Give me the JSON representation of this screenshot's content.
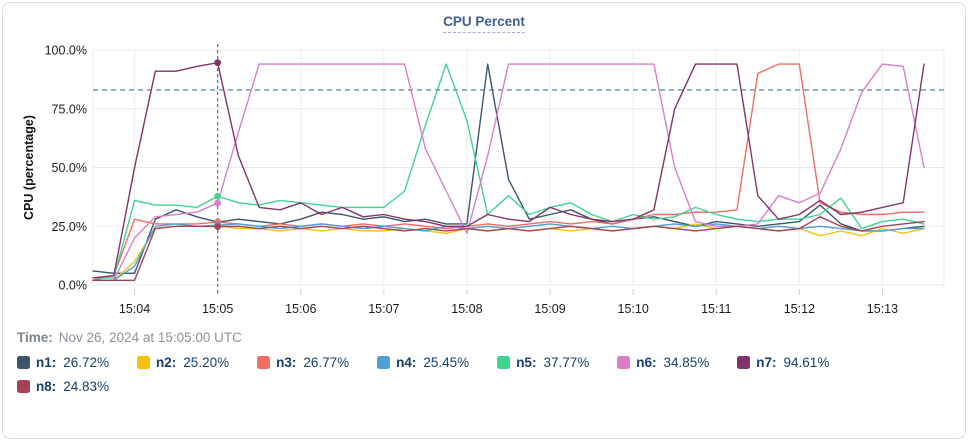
{
  "header": {
    "title": "CPU Percent"
  },
  "time_row": {
    "label": "Time:",
    "value": "Nov 26, 2024 at 15:05:00 UTC"
  },
  "colors": {
    "title_text": "#41608f",
    "legend_text": "#16406f",
    "muted_text": "#8d939a",
    "grid": "#e9e9e9",
    "card_border": "#dadfe5",
    "threshold": "#46788e",
    "crosshair": "#46788e"
  },
  "chart_data": {
    "type": "line",
    "title": "CPU Percent",
    "xlabel": "",
    "ylabel": "CPU (percentage)",
    "ylim": [
      0,
      100
    ],
    "grid": true,
    "legend_position": "bottom",
    "x_unit": "time (UTC)",
    "x_interval_seconds": 15,
    "x_start_time": "15:03:30",
    "x_ticks": [
      {
        "index": 2,
        "label": "15:04"
      },
      {
        "index": 6,
        "label": "15:05"
      },
      {
        "index": 10,
        "label": "15:06"
      },
      {
        "index": 14,
        "label": "15:07"
      },
      {
        "index": 18,
        "label": "15:08"
      },
      {
        "index": 22,
        "label": "15:09"
      },
      {
        "index": 26,
        "label": "15:10"
      },
      {
        "index": 30,
        "label": "15:11"
      },
      {
        "index": 34,
        "label": "15:12"
      },
      {
        "index": 38,
        "label": "15:13"
      }
    ],
    "y_ticks": [
      {
        "value": 0,
        "label": "0.0%"
      },
      {
        "value": 25,
        "label": "25.0%"
      },
      {
        "value": 50,
        "label": "50.0%"
      },
      {
        "value": 75,
        "label": "75.0%"
      },
      {
        "value": 100,
        "label": "100.0%"
      }
    ],
    "threshold_line": {
      "value": 83,
      "style": "dashed",
      "color": "#46788e"
    },
    "crosshair": {
      "index": 6,
      "time_label": "15:05",
      "color": "#46788e"
    },
    "series": [
      {
        "name": "n1",
        "color": "#3f556e",
        "legend_value": "26.72%",
        "values": [
          6,
          5,
          5,
          28,
          32,
          29,
          26.72,
          28,
          27,
          26,
          28,
          31,
          30,
          28,
          29,
          27,
          28,
          26,
          26,
          94,
          45,
          28,
          30,
          32,
          28,
          26,
          28,
          29,
          27,
          25,
          27,
          26,
          25,
          26,
          27,
          34,
          26,
          23,
          23,
          24,
          25
        ]
      },
      {
        "name": "n2",
        "color": "#f3c211",
        "legend_value": "25.20%",
        "values": [
          2,
          2,
          10,
          24,
          25,
          25,
          25.2,
          24,
          24,
          23,
          24,
          23,
          24,
          23,
          23,
          24,
          23,
          22,
          24,
          23,
          24,
          23,
          24,
          23,
          24,
          23,
          24,
          25,
          24,
          26,
          24,
          25,
          24,
          23,
          24,
          21,
          23,
          21,
          24,
          22,
          24
        ]
      },
      {
        "name": "n3",
        "color": "#ee6e62",
        "legend_value": "26.77%",
        "values": [
          2,
          4,
          28,
          26,
          26,
          26,
          26.77,
          26,
          25,
          26,
          25,
          26,
          25,
          26,
          25,
          26,
          25,
          24,
          25,
          26,
          25,
          26,
          27,
          26,
          27,
          26,
          28,
          30,
          30,
          31,
          31,
          32,
          90,
          94,
          94,
          35,
          31,
          30,
          30,
          31,
          31
        ]
      },
      {
        "name": "n4",
        "color": "#4d9fd6",
        "legend_value": "25.45%",
        "values": [
          2,
          2,
          8,
          25,
          26,
          25,
          25.45,
          26,
          25,
          24,
          25,
          26,
          25,
          24,
          25,
          24,
          23,
          25,
          24,
          25,
          24,
          25,
          26,
          25,
          24,
          25,
          24,
          25,
          26,
          25,
          26,
          25,
          24,
          25,
          24,
          25,
          24,
          23,
          23,
          24,
          24
        ]
      },
      {
        "name": "n5",
        "color": "#40d491",
        "legend_value": "37.77%",
        "values": [
          3,
          3,
          36,
          34,
          34,
          33,
          37.77,
          35,
          34,
          36,
          35,
          34,
          33,
          33,
          33,
          40,
          68,
          94,
          70,
          30,
          38,
          30,
          33,
          35,
          30,
          27,
          30,
          28,
          29,
          33,
          30,
          28,
          27,
          28,
          28,
          30,
          37,
          24,
          27,
          28,
          26
        ]
      },
      {
        "name": "n6",
        "color": "#d97fc9",
        "legend_value": "34.85%",
        "values": [
          2,
          2,
          20,
          29,
          30,
          31,
          34.85,
          65,
          94,
          94,
          94,
          94,
          94,
          94,
          94,
          94,
          58,
          40,
          22,
          55,
          94,
          94,
          94,
          94,
          94,
          94,
          94,
          94,
          50,
          27,
          25,
          25,
          26,
          38,
          35,
          39,
          58,
          82,
          94,
          93,
          50
        ]
      },
      {
        "name": "n7",
        "color": "#84336a",
        "legend_value": "94.61%",
        "values": [
          3,
          4,
          50,
          91,
          91,
          93,
          94.61,
          55,
          33,
          32,
          35,
          30,
          33,
          29,
          30,
          28,
          27,
          25,
          25,
          30,
          28,
          27,
          33,
          30,
          28,
          27,
          28,
          32,
          75,
          94,
          94,
          94,
          38,
          28,
          30,
          36,
          30,
          31,
          33,
          35,
          94
        ]
      },
      {
        "name": "n8",
        "color": "#a64257",
        "legend_value": "24.83%",
        "values": [
          2,
          2,
          2,
          24,
          25,
          25,
          24.83,
          25,
          24,
          25,
          24,
          25,
          24,
          25,
          24,
          23,
          24,
          23,
          24,
          23,
          24,
          23,
          24,
          25,
          24,
          23,
          24,
          25,
          24,
          23,
          24,
          25,
          24,
          23,
          24,
          29,
          25,
          23,
          25,
          26,
          27
        ]
      }
    ]
  }
}
